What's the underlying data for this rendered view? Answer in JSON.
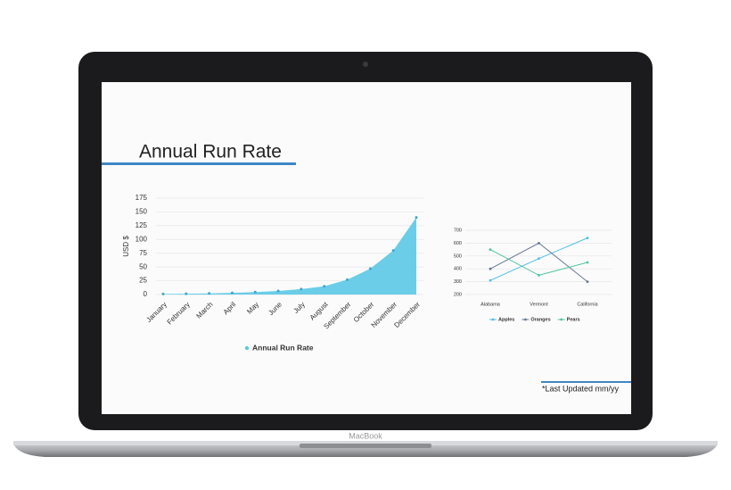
{
  "slide": {
    "title": "Annual Run Rate",
    "footnote": "*Last Updated mm/yy",
    "device_label": "MacBook"
  },
  "chart_data": [
    {
      "type": "area",
      "ylabel": "USD $",
      "categories": [
        "January",
        "February",
        "March",
        "April",
        "May",
        "June",
        "July",
        "August",
        "September",
        "October",
        "November",
        "December"
      ],
      "series": [
        {
          "name": "Annual Run Rate",
          "color": "#5bc8e6",
          "values": [
            1,
            1.5,
            2,
            3,
            4.5,
            6.5,
            10,
            15,
            27,
            47,
            80,
            140
          ]
        }
      ],
      "ylim": [
        0,
        175
      ],
      "yticks": [
        0,
        25,
        50,
        75,
        100,
        125,
        150,
        175
      ],
      "grid": true
    },
    {
      "type": "line",
      "categories": [
        "Alabama",
        "Vermont",
        "California"
      ],
      "series": [
        {
          "name": "Apples",
          "color": "#4fbfe3",
          "values": [
            310,
            480,
            640
          ]
        },
        {
          "name": "Oranges",
          "color": "#6a7895",
          "values": [
            400,
            600,
            300
          ]
        },
        {
          "name": "Pears",
          "color": "#4cc79c",
          "values": [
            550,
            350,
            450
          ]
        }
      ],
      "ylim": [
        200,
        700
      ],
      "yticks": [
        200,
        300,
        400,
        500,
        600,
        700
      ],
      "grid": true
    }
  ]
}
